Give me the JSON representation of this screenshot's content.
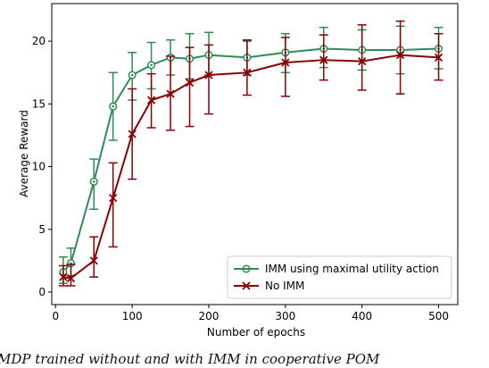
{
  "chart_data": {
    "type": "line",
    "xlabel": "Number of epochs",
    "ylabel": "Average Reward",
    "xlim": [
      -5,
      525
    ],
    "ylim": [
      -1,
      23
    ],
    "xticks": [
      0,
      100,
      200,
      300,
      400,
      500
    ],
    "yticks": [
      0,
      5,
      10,
      15,
      20
    ],
    "grid": false,
    "legend_position": "bottom-right",
    "series": [
      {
        "name": "IMM using maximal utility action",
        "color": "#2e8b57",
        "marker": "circle",
        "x": [
          10,
          20,
          50,
          75,
          100,
          125,
          150,
          175,
          200,
          250,
          300,
          350,
          400,
          450,
          500
        ],
        "y": [
          1.6,
          2.3,
          8.8,
          14.8,
          17.3,
          18.1,
          18.7,
          18.6,
          18.9,
          18.7,
          19.1,
          19.4,
          19.3,
          19.3,
          19.4
        ],
        "err_low": [
          0.7,
          1.3,
          6.6,
          12.1,
          15.3,
          16.2,
          17.3,
          17.0,
          17.3,
          17.3,
          17.5,
          17.9,
          17.7,
          17.4,
          17.8
        ],
        "err_high": [
          2.8,
          3.5,
          10.6,
          17.5,
          19.1,
          19.9,
          20.1,
          20.6,
          20.7,
          20.0,
          20.6,
          21.1,
          20.9,
          21.2,
          21.1
        ]
      },
      {
        "name": "No IMM",
        "color": "#8b0000",
        "marker": "x",
        "x": [
          10,
          20,
          50,
          75,
          100,
          125,
          150,
          175,
          200,
          250,
          300,
          350,
          400,
          450,
          500
        ],
        "y": [
          1.2,
          1.1,
          2.5,
          7.5,
          12.6,
          15.3,
          15.8,
          16.7,
          17.3,
          17.5,
          18.3,
          18.5,
          18.4,
          18.9,
          18.7
        ],
        "err_low": [
          0.5,
          0.5,
          1.2,
          3.6,
          9.0,
          13.1,
          12.9,
          13.2,
          14.2,
          15.7,
          15.6,
          16.9,
          16.1,
          15.8,
          16.9
        ],
        "err_high": [
          2.1,
          2.2,
          4.4,
          10.3,
          16.2,
          17.4,
          18.8,
          19.5,
          19.7,
          20.1,
          20.3,
          20.5,
          21.3,
          21.6,
          20.6
        ]
      }
    ]
  },
  "caption": "MDP trained without and with IMM in cooperative POM"
}
